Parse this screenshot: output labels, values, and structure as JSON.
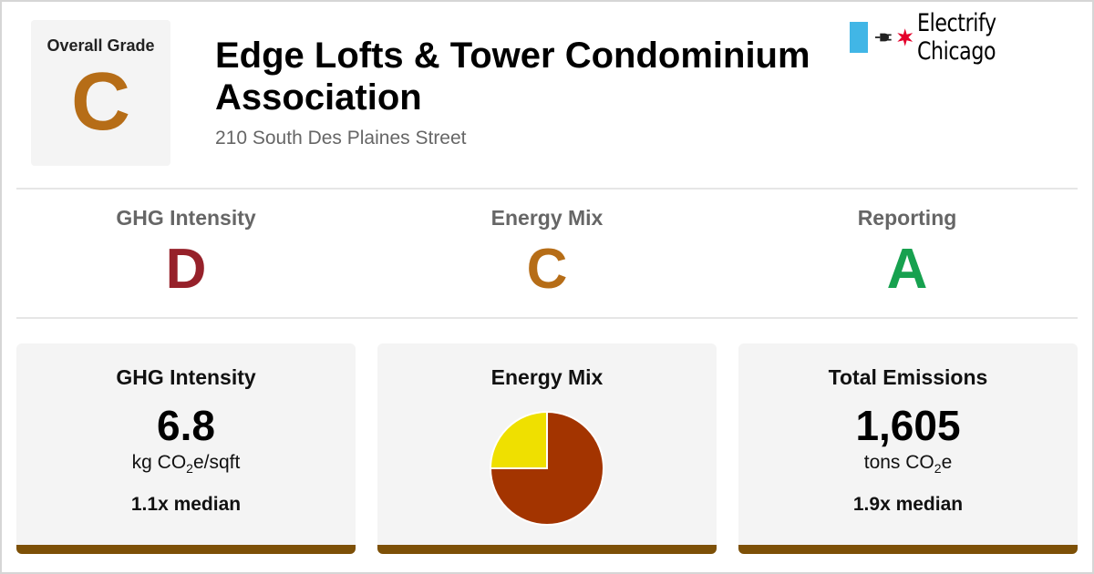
{
  "overall": {
    "label": "Overall Grade",
    "grade": "C",
    "color": "#b66d17"
  },
  "building": {
    "name": "Edge Lofts & Tower Condominium Association",
    "address": "210 South Des Plaines Street"
  },
  "brand": {
    "name": "Electrify Chicago",
    "stripe_color": "#41b6e6",
    "star_color": "#e4002b",
    "icons": [
      "plug-icon",
      "star-icon"
    ]
  },
  "grades": [
    {
      "title": "GHG Intensity",
      "grade": "D",
      "color": "#96212a"
    },
    {
      "title": "Energy Mix",
      "grade": "C",
      "color": "#b66d17"
    },
    {
      "title": "Reporting",
      "grade": "A",
      "color": "#17a14f"
    }
  ],
  "cards": {
    "ghg": {
      "title": "GHG Intensity",
      "value": "6.8",
      "unit_main": "kg CO",
      "unit_sub": "2",
      "unit_tail": "e/sqft",
      "median": "1.1x median"
    },
    "mix": {
      "title": "Energy Mix"
    },
    "emissions": {
      "title": "Total Emissions",
      "value": "1,605",
      "unit_main": "tons CO",
      "unit_sub": "2",
      "unit_tail": "e",
      "median": "1.9x median"
    },
    "bar_color": "#7d5007"
  },
  "chart_data": {
    "type": "pie",
    "title": "",
    "slices": [
      {
        "fraction": 0.75,
        "color": "#a33400"
      },
      {
        "fraction": 0.25,
        "color": "#efe000"
      }
    ]
  }
}
